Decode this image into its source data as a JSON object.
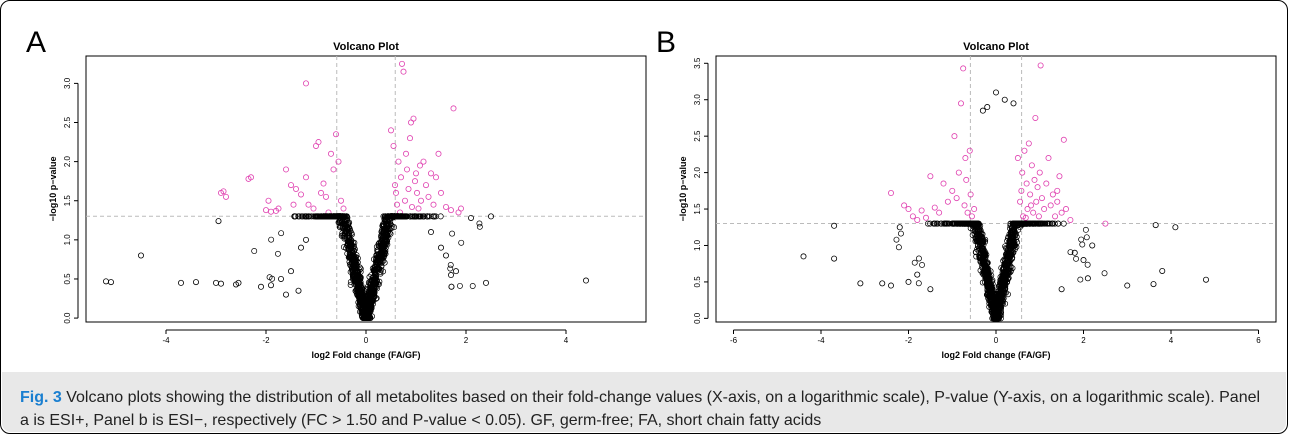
{
  "caption": {
    "label": "Fig. 3",
    "text": "Volcano plots showing the distribution of all metabolites based on their fold-change values (X-axis, on a logarithmic scale), P-value (Y-axis, on a logarithmic scale). Panel a is ESI+, Panel b is ESI−, respectively (FC > 1.50 and P-value < 0.05). GF, germ-free; FA, short chain fatty acids"
  },
  "colors": {
    "significant": "#e040b0",
    "other": "#000000",
    "threshold": "#bbbbbb"
  },
  "chart_data": [
    {
      "type": "scatter",
      "panel_letter": "A",
      "title": "Volcano Plot",
      "xlabel": "log2 Fold change (FA/GF)",
      "ylabel": "−log10 p−value",
      "xlim": [
        -5.6,
        5.6
      ],
      "ylim": [
        -0.05,
        3.35
      ],
      "xticks": [
        -4,
        -2,
        0,
        2,
        4
      ],
      "yticks": [
        0.0,
        0.5,
        1.0,
        1.5,
        2.0,
        2.5,
        3.0
      ],
      "thresholds": {
        "x": [
          -0.585,
          0.585
        ],
        "y": 1.301
      },
      "series": [
        {
          "name": "",
          "color": "#e040b0",
          "points": [
            [
              -2.9,
              1.6
            ],
            [
              -2.85,
              1.62
            ],
            [
              -2.8,
              1.55
            ],
            [
              -2.35,
              1.78
            ],
            [
              -2.3,
              1.8
            ],
            [
              -1.95,
              1.5
            ],
            [
              -2.0,
              1.38
            ],
            [
              -1.9,
              1.36
            ],
            [
              -1.8,
              1.37
            ],
            [
              -1.75,
              1.4
            ],
            [
              -1.6,
              1.9
            ],
            [
              -1.5,
              1.7
            ],
            [
              -1.4,
              1.65
            ],
            [
              -1.3,
              1.58
            ],
            [
              -1.2,
              1.8
            ],
            [
              -1.15,
              1.45
            ],
            [
              -1.05,
              1.4
            ],
            [
              -1.0,
              2.2
            ],
            [
              -0.95,
              2.25
            ],
            [
              -0.9,
              1.6
            ],
            [
              -0.85,
              1.72
            ],
            [
              -0.8,
              1.55
            ],
            [
              -0.7,
              2.1
            ],
            [
              -0.65,
              1.9
            ],
            [
              -0.6,
              2.35
            ],
            [
              -0.55,
              2.0
            ],
            [
              -1.2,
              3.0
            ],
            [
              -0.75,
              1.35
            ],
            [
              -0.5,
              1.5
            ],
            [
              -0.45,
              1.4
            ],
            [
              -1.45,
              1.45
            ],
            [
              0.5,
              2.4
            ],
            [
              0.55,
              2.2
            ],
            [
              0.6,
              1.6
            ],
            [
              0.62,
              1.45
            ],
            [
              0.65,
              2.0
            ],
            [
              0.7,
              1.8
            ],
            [
              0.72,
              3.25
            ],
            [
              0.75,
              3.15
            ],
            [
              0.78,
              1.5
            ],
            [
              0.8,
              2.1
            ],
            [
              0.82,
              1.9
            ],
            [
              0.85,
              1.65
            ],
            [
              0.88,
              2.3
            ],
            [
              0.9,
              2.5
            ],
            [
              0.92,
              1.42
            ],
            [
              0.95,
              2.55
            ],
            [
              0.98,
              1.75
            ],
            [
              1.0,
              1.85
            ],
            [
              1.02,
              1.6
            ],
            [
              1.05,
              1.4
            ],
            [
              1.08,
              1.95
            ],
            [
              1.1,
              1.5
            ],
            [
              1.15,
              2.0
            ],
            [
              1.2,
              1.7
            ],
            [
              1.25,
              1.55
            ],
            [
              1.3,
              1.85
            ],
            [
              1.35,
              1.45
            ],
            [
              1.4,
              1.8
            ],
            [
              1.5,
              1.6
            ],
            [
              1.6,
              1.42
            ],
            [
              1.7,
              1.38
            ],
            [
              1.75,
              2.68
            ],
            [
              1.85,
              1.35
            ],
            [
              1.9,
              1.4
            ],
            [
              0.68,
              1.35
            ],
            [
              0.58,
              1.7
            ],
            [
              1.45,
              2.1
            ]
          ]
        },
        {
          "name": "",
          "color": "#000000",
          "points": [
            [
              -5.2,
              0.47
            ],
            [
              -5.1,
              0.46
            ],
            [
              -4.5,
              0.8
            ],
            [
              -3.7,
              0.45
            ],
            [
              -3.4,
              0.46
            ],
            [
              -3.0,
              0.45
            ],
            [
              -2.9,
              0.44
            ],
            [
              -2.6,
              0.43
            ],
            [
              -2.55,
              0.45
            ],
            [
              -2.95,
              1.24
            ],
            [
              -2.1,
              0.4
            ],
            [
              -1.9,
              0.42
            ],
            [
              -1.7,
              0.5
            ],
            [
              -1.5,
              0.6
            ],
            [
              -1.3,
              0.9
            ],
            [
              -1.2,
              1.0
            ],
            [
              2.1,
              1.28
            ],
            [
              2.4,
              0.45
            ],
            [
              4.4,
              0.48
            ],
            [
              2.5,
              1.3
            ],
            [
              1.7,
              0.55
            ],
            [
              1.8,
              0.6
            ],
            [
              1.6,
              0.8
            ],
            [
              1.5,
              0.9
            ],
            [
              1.3,
              1.1
            ],
            [
              -1.35,
              0.35
            ],
            [
              -1.6,
              0.3
            ]
          ]
        }
      ]
    },
    {
      "type": "scatter",
      "panel_letter": "B",
      "title": "Volcano Plot",
      "xlabel": "log2 Fold change (FA/GF)",
      "ylabel": "−log10 p−value",
      "xlim": [
        -6.4,
        6.4
      ],
      "ylim": [
        -0.05,
        3.6
      ],
      "xticks": [
        -6,
        -4,
        -2,
        0,
        2,
        4,
        6
      ],
      "yticks": [
        0.0,
        0.5,
        1.0,
        1.5,
        2.0,
        2.5,
        3.0,
        3.5
      ],
      "thresholds": {
        "x": [
          -0.585,
          0.585
        ],
        "y": 1.301
      },
      "series": [
        {
          "name": "",
          "color": "#e040b0",
          "points": [
            [
              -2.4,
              1.72
            ],
            [
              -2.1,
              1.55
            ],
            [
              -2.0,
              1.5
            ],
            [
              -1.9,
              1.4
            ],
            [
              -1.7,
              1.48
            ],
            [
              -1.6,
              1.38
            ],
            [
              -1.5,
              1.95
            ],
            [
              -1.4,
              1.52
            ],
            [
              -1.3,
              1.45
            ],
            [
              -1.2,
              1.85
            ],
            [
              -1.1,
              1.6
            ],
            [
              -1.0,
              1.75
            ],
            [
              -0.95,
              2.5
            ],
            [
              -0.9,
              1.65
            ],
            [
              -0.85,
              2.0
            ],
            [
              -0.8,
              2.95
            ],
            [
              -0.75,
              3.43
            ],
            [
              -0.72,
              1.55
            ],
            [
              -0.7,
              2.2
            ],
            [
              -0.68,
              1.9
            ],
            [
              -0.65,
              1.45
            ],
            [
              -0.6,
              2.3
            ],
            [
              -0.58,
              1.7
            ],
            [
              -0.55,
              1.4
            ],
            [
              -1.8,
              1.35
            ],
            [
              -0.5,
              1.5
            ],
            [
              0.5,
              2.2
            ],
            [
              0.55,
              1.6
            ],
            [
              0.6,
              2.0
            ],
            [
              0.62,
              1.4
            ],
            [
              0.65,
              2.3
            ],
            [
              0.7,
              1.85
            ],
            [
              0.72,
              1.5
            ],
            [
              0.75,
              2.4
            ],
            [
              0.78,
              1.7
            ],
            [
              0.8,
              1.55
            ],
            [
              0.82,
              2.1
            ],
            [
              0.85,
              1.45
            ],
            [
              0.88,
              1.9
            ],
            [
              0.9,
              2.75
            ],
            [
              0.92,
              1.6
            ],
            [
              0.95,
              1.8
            ],
            [
              0.98,
              1.4
            ],
            [
              1.0,
              2.0
            ],
            [
              1.02,
              3.47
            ],
            [
              1.05,
              1.65
            ],
            [
              1.1,
              1.5
            ],
            [
              1.15,
              1.85
            ],
            [
              1.2,
              2.2
            ],
            [
              1.25,
              1.55
            ],
            [
              1.3,
              1.7
            ],
            [
              1.35,
              1.4
            ],
            [
              1.4,
              1.6
            ],
            [
              1.45,
              1.95
            ],
            [
              1.5,
              1.45
            ],
            [
              1.55,
              2.45
            ],
            [
              1.6,
              1.5
            ],
            [
              1.7,
              1.35
            ],
            [
              2.5,
              1.3
            ],
            [
              1.4,
              1.75
            ],
            [
              0.68,
              1.38
            ],
            [
              0.58,
              1.75
            ]
          ]
        },
        {
          "name": "",
          "color": "#000000",
          "points": [
            [
              -4.4,
              0.85
            ],
            [
              -3.7,
              0.82
            ],
            [
              -3.7,
              1.27
            ],
            [
              -3.1,
              0.48
            ],
            [
              -2.6,
              0.48
            ],
            [
              -2.4,
              0.45
            ],
            [
              -2.2,
              1.25
            ],
            [
              -2.0,
              0.5
            ],
            [
              -1.8,
              0.6
            ],
            [
              3.0,
              0.45
            ],
            [
              3.6,
              0.47
            ],
            [
              3.65,
              1.28
            ],
            [
              3.8,
              0.65
            ],
            [
              4.1,
              1.25
            ],
            [
              4.8,
              0.53
            ],
            [
              2.2,
              1.0
            ],
            [
              2.0,
              0.8
            ],
            [
              1.8,
              0.9
            ],
            [
              0.0,
              3.1
            ],
            [
              -0.2,
              2.9
            ],
            [
              0.4,
              2.95
            ],
            [
              -0.3,
              2.85
            ],
            [
              0.2,
              3.0
            ],
            [
              -1.5,
              0.4
            ],
            [
              1.5,
              0.4
            ],
            [
              2.1,
              0.55
            ]
          ]
        }
      ]
    }
  ]
}
